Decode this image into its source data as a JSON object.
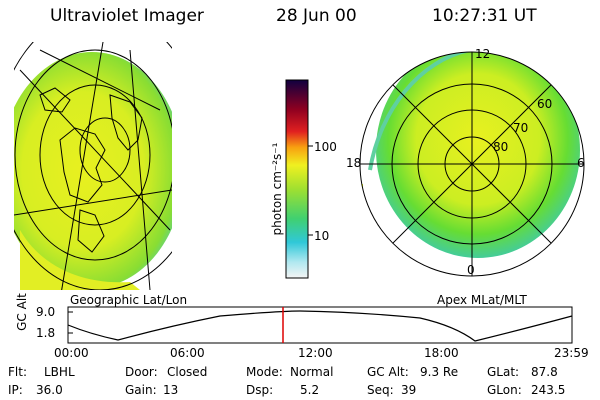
{
  "header": {
    "instrument": "Ultraviolet Imager",
    "date": "28 Jun 00",
    "time": "10:27:31 UT"
  },
  "left_panel": {
    "label": "Geographic Lat/Lon"
  },
  "right_panel": {
    "label": "Apex  MLat/MLT",
    "mlt_labels": [
      "12",
      "18",
      "6",
      "0"
    ],
    "lat_labels": [
      "60",
      "70",
      "80"
    ]
  },
  "colorbar": {
    "unit_label": "photon cm⁻²s⁻¹",
    "tick_labels": [
      "100",
      "10"
    ]
  },
  "altitude_plot": {
    "ylabel": "GC Alt",
    "y_ticks": [
      "9.0",
      "1.8"
    ],
    "x_ticks": [
      "00:00",
      "06:00",
      "12:00",
      "18:00",
      "23:59"
    ],
    "current_time_marker_color": "#dd0000"
  },
  "status": {
    "row1": [
      {
        "key": "Flt:",
        "value": "LBHL"
      },
      {
        "key": "Door:",
        "value": "Closed"
      },
      {
        "key": "Mode:",
        "value": "Normal"
      },
      {
        "key": "GC Alt:",
        "value": "9.3 Re"
      },
      {
        "key": "GLat:",
        "value": "87.8"
      }
    ],
    "row2": [
      {
        "key": "IP:",
        "value": "36.0"
      },
      {
        "key": "Gain:",
        "value": "13"
      },
      {
        "key": "Dsp:",
        "value": "5.2"
      },
      {
        "key": "Seq:",
        "value": "39"
      },
      {
        "key": "GLon:",
        "value": "243.5"
      }
    ]
  },
  "colors": {
    "auroral_green": "#66dd22",
    "auroral_yellow": "#e6f020",
    "low_cyan": "#3ec8d8"
  }
}
